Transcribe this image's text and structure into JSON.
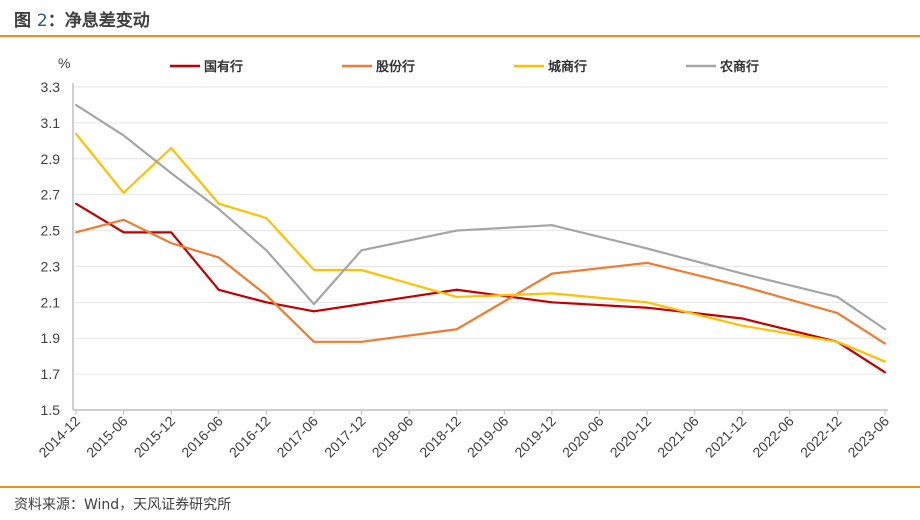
{
  "header": {
    "title_prefix": "图 ",
    "title_num": "2",
    "title_text": "：净息差变动"
  },
  "footer": {
    "source": "资料来源：Wind，天风证券研究所"
  },
  "colors": {
    "accent": "#f08a24"
  },
  "chart_data": {
    "type": "line",
    "unit": "%",
    "categories": [
      "2014-12",
      "2015-06",
      "2015-12",
      "2016-06",
      "2016-12",
      "2017-06",
      "2017-12",
      "2018-06",
      "2018-12",
      "2019-06",
      "2019-12",
      "2020-06",
      "2020-12",
      "2021-06",
      "2021-12",
      "2022-06",
      "2022-12",
      "2023-06"
    ],
    "ylim": [
      1.5,
      3.3
    ],
    "yticks": [
      "3.3",
      "3.1",
      "2.9",
      "2.7",
      "2.5",
      "2.3",
      "2.1",
      "1.9",
      "1.7",
      "1.5"
    ],
    "grid": true,
    "legend_position": "top",
    "series": [
      {
        "name": "国有行",
        "color": "#c00000",
        "values": [
          2.65,
          2.49,
          2.49,
          2.17,
          2.1,
          2.05,
          2.09,
          null,
          2.17,
          null,
          2.1,
          null,
          2.07,
          null,
          2.01,
          null,
          1.88,
          1.71
        ]
      },
      {
        "name": "股份行",
        "color": "#ed7d31",
        "values": [
          2.49,
          2.56,
          2.43,
          2.35,
          2.14,
          1.88,
          1.88,
          null,
          1.95,
          null,
          2.26,
          null,
          2.32,
          null,
          2.19,
          null,
          2.04,
          1.87
        ]
      },
      {
        "name": "城商行",
        "color": "#ffc000",
        "values": [
          3.04,
          2.71,
          2.96,
          2.65,
          2.57,
          2.28,
          2.28,
          null,
          2.13,
          null,
          2.15,
          null,
          2.1,
          null,
          1.97,
          null,
          1.88,
          1.77
        ]
      },
      {
        "name": "农商行",
        "color": "#a5a5a5",
        "values": [
          3.2,
          3.03,
          2.82,
          2.62,
          2.39,
          2.09,
          2.39,
          null,
          2.5,
          null,
          2.53,
          null,
          2.4,
          null,
          2.26,
          null,
          2.13,
          1.95
        ]
      }
    ]
  }
}
